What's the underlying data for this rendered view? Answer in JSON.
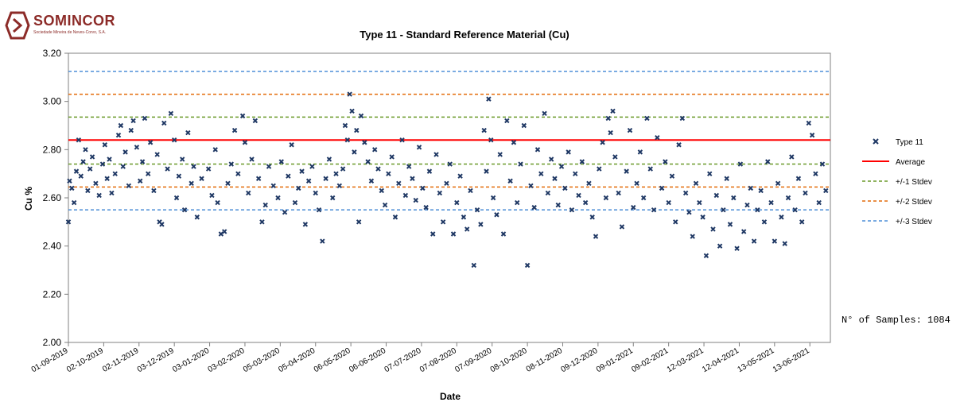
{
  "logo": {
    "name": "SOMINCOR",
    "subtitle": "Sociedade Mineira de Neves-Corvo, S.A.",
    "color": "#8c2b28"
  },
  "samples_note": "N° of Samples: 1084",
  "chart_data": {
    "type": "scatter",
    "title": "Type 11 - Standard Reference Material (Cu)",
    "xlabel": "Date",
    "ylabel": "Cu %",
    "ylim": [
      2.0,
      3.2
    ],
    "yticks": [
      "3.20",
      "3.00",
      "2.80",
      "2.60",
      "2.40",
      "2.20",
      "2.00"
    ],
    "xlim": [
      "2019-09-01",
      "2021-07-01"
    ],
    "xtick_labels": [
      "01-09-2019",
      "02-10-2019",
      "02-11-2019",
      "03-12-2019",
      "03-01-2020",
      "03-02-2020",
      "05-03-2020",
      "05-04-2020",
      "06-05-2020",
      "06-06-2020",
      "07-07-2020",
      "07-08-2020",
      "07-09-2020",
      "08-10-2020",
      "08-11-2020",
      "09-12-2020",
      "09-01-2021",
      "09-02-2021",
      "12-03-2021",
      "12-04-2021",
      "13-05-2021",
      "13-06-2021"
    ],
    "grid": false,
    "legend_position": "right",
    "legend": [
      {
        "label": "Type 11",
        "kind": "marker",
        "color": "#1f3864"
      },
      {
        "label": "Average",
        "kind": "solid",
        "color": "#ff0000"
      },
      {
        "label": "+/-1 Stdev",
        "kind": "dashed",
        "color": "#6b9a2a"
      },
      {
        "label": "+/-2 Stdev",
        "kind": "dashed",
        "color": "#e46c0a"
      },
      {
        "label": "+/-3 Stdev",
        "kind": "dashed",
        "color": "#4f8fd8"
      }
    ],
    "reference_lines": [
      {
        "name": "Average",
        "value": 2.84,
        "color": "#ff0000",
        "style": "solid"
      },
      {
        "name": "+1 Stdev",
        "value": 2.935,
        "color": "#6b9a2a",
        "style": "dashed"
      },
      {
        "name": "-1 Stdev",
        "value": 2.74,
        "color": "#6b9a2a",
        "style": "dashed"
      },
      {
        "name": "+2 Stdev",
        "value": 3.03,
        "color": "#e46c0a",
        "style": "dashed"
      },
      {
        "name": "-2 Stdev",
        "value": 2.645,
        "color": "#e46c0a",
        "style": "dashed"
      },
      {
        "name": "+3 Stdev",
        "value": 3.125,
        "color": "#4f8fd8",
        "style": "dashed"
      },
      {
        "name": "-3 Stdev",
        "value": 2.55,
        "color": "#4f8fd8",
        "style": "dashed"
      }
    ],
    "series": [
      {
        "name": "Type 11",
        "color": "#1f3864",
        "points": [
          [
            "2019-09-01",
            2.5
          ],
          [
            "2019-09-02",
            2.67
          ],
          [
            "2019-09-04",
            2.64
          ],
          [
            "2019-09-06",
            2.58
          ],
          [
            "2019-09-08",
            2.71
          ],
          [
            "2019-09-10",
            2.84
          ],
          [
            "2019-09-12",
            2.69
          ],
          [
            "2019-09-14",
            2.75
          ],
          [
            "2019-09-16",
            2.8
          ],
          [
            "2019-09-18",
            2.63
          ],
          [
            "2019-09-20",
            2.72
          ],
          [
            "2019-09-22",
            2.77
          ],
          [
            "2019-09-25",
            2.66
          ],
          [
            "2019-09-28",
            2.61
          ],
          [
            "2019-10-01",
            2.74
          ],
          [
            "2019-10-03",
            2.82
          ],
          [
            "2019-10-05",
            2.68
          ],
          [
            "2019-10-07",
            2.76
          ],
          [
            "2019-10-09",
            2.62
          ],
          [
            "2019-10-12",
            2.7
          ],
          [
            "2019-10-15",
            2.86
          ],
          [
            "2019-10-17",
            2.9
          ],
          [
            "2019-10-19",
            2.73
          ],
          [
            "2019-10-21",
            2.79
          ],
          [
            "2019-10-24",
            2.65
          ],
          [
            "2019-10-26",
            2.88
          ],
          [
            "2019-10-28",
            2.92
          ],
          [
            "2019-10-31",
            2.81
          ],
          [
            "2019-11-03",
            2.67
          ],
          [
            "2019-11-05",
            2.75
          ],
          [
            "2019-11-07",
            2.93
          ],
          [
            "2019-11-10",
            2.7
          ],
          [
            "2019-11-12",
            2.83
          ],
          [
            "2019-11-15",
            2.63
          ],
          [
            "2019-11-18",
            2.78
          ],
          [
            "2019-11-20",
            2.5
          ],
          [
            "2019-11-22",
            2.49
          ],
          [
            "2019-11-24",
            2.91
          ],
          [
            "2019-11-27",
            2.72
          ],
          [
            "2019-11-30",
            2.95
          ],
          [
            "2019-12-03",
            2.84
          ],
          [
            "2019-12-05",
            2.6
          ],
          [
            "2019-12-07",
            2.69
          ],
          [
            "2019-12-10",
            2.76
          ],
          [
            "2019-12-12",
            2.55
          ],
          [
            "2019-12-15",
            2.87
          ],
          [
            "2019-12-18",
            2.66
          ],
          [
            "2019-12-20",
            2.73
          ],
          [
            "2019-12-23",
            2.52
          ],
          [
            "2019-12-27",
            2.68
          ],
          [
            "2020-01-02",
            2.72
          ],
          [
            "2020-01-05",
            2.61
          ],
          [
            "2020-01-08",
            2.8
          ],
          [
            "2020-01-10",
            2.58
          ],
          [
            "2020-01-13",
            2.45
          ],
          [
            "2020-01-16",
            2.46
          ],
          [
            "2020-01-19",
            2.66
          ],
          [
            "2020-01-22",
            2.74
          ],
          [
            "2020-01-25",
            2.88
          ],
          [
            "2020-01-28",
            2.7
          ],
          [
            "2020-02-01",
            2.94
          ],
          [
            "2020-02-03",
            2.83
          ],
          [
            "2020-02-06",
            2.62
          ],
          [
            "2020-02-09",
            2.76
          ],
          [
            "2020-02-12",
            2.92
          ],
          [
            "2020-02-15",
            2.68
          ],
          [
            "2020-02-18",
            2.5
          ],
          [
            "2020-02-21",
            2.57
          ],
          [
            "2020-02-24",
            2.73
          ],
          [
            "2020-02-28",
            2.65
          ],
          [
            "2020-03-03",
            2.6
          ],
          [
            "2020-03-06",
            2.75
          ],
          [
            "2020-03-09",
            2.54
          ],
          [
            "2020-03-12",
            2.69
          ],
          [
            "2020-03-15",
            2.82
          ],
          [
            "2020-03-18",
            2.58
          ],
          [
            "2020-03-21",
            2.64
          ],
          [
            "2020-03-24",
            2.71
          ],
          [
            "2020-03-27",
            2.49
          ],
          [
            "2020-03-30",
            2.67
          ],
          [
            "2020-04-02",
            2.73
          ],
          [
            "2020-04-05",
            2.62
          ],
          [
            "2020-04-08",
            2.55
          ],
          [
            "2020-04-11",
            2.42
          ],
          [
            "2020-04-14",
            2.68
          ],
          [
            "2020-04-17",
            2.76
          ],
          [
            "2020-04-20",
            2.6
          ],
          [
            "2020-04-23",
            2.7
          ],
          [
            "2020-04-26",
            2.65
          ],
          [
            "2020-04-29",
            2.72
          ],
          [
            "2020-05-01",
            2.9
          ],
          [
            "2020-05-03",
            2.84
          ],
          [
            "2020-05-05",
            3.03
          ],
          [
            "2020-05-07",
            2.96
          ],
          [
            "2020-05-09",
            2.79
          ],
          [
            "2020-05-11",
            2.88
          ],
          [
            "2020-05-13",
            2.5
          ],
          [
            "2020-05-15",
            2.94
          ],
          [
            "2020-05-18",
            2.83
          ],
          [
            "2020-05-21",
            2.75
          ],
          [
            "2020-05-24",
            2.67
          ],
          [
            "2020-05-27",
            2.8
          ],
          [
            "2020-05-30",
            2.72
          ],
          [
            "2020-06-02",
            2.63
          ],
          [
            "2020-06-05",
            2.57
          ],
          [
            "2020-06-08",
            2.7
          ],
          [
            "2020-06-11",
            2.77
          ],
          [
            "2020-06-14",
            2.52
          ],
          [
            "2020-06-17",
            2.66
          ],
          [
            "2020-06-20",
            2.84
          ],
          [
            "2020-06-23",
            2.61
          ],
          [
            "2020-06-26",
            2.73
          ],
          [
            "2020-06-29",
            2.68
          ],
          [
            "2020-07-02",
            2.59
          ],
          [
            "2020-07-05",
            2.81
          ],
          [
            "2020-07-08",
            2.64
          ],
          [
            "2020-07-11",
            2.56
          ],
          [
            "2020-07-14",
            2.71
          ],
          [
            "2020-07-17",
            2.45
          ],
          [
            "2020-07-20",
            2.78
          ],
          [
            "2020-07-23",
            2.62
          ],
          [
            "2020-07-26",
            2.5
          ],
          [
            "2020-07-29",
            2.66
          ],
          [
            "2020-08-01",
            2.74
          ],
          [
            "2020-08-04",
            2.45
          ],
          [
            "2020-08-07",
            2.58
          ],
          [
            "2020-08-10",
            2.69
          ],
          [
            "2020-08-13",
            2.52
          ],
          [
            "2020-08-16",
            2.47
          ],
          [
            "2020-08-19",
            2.63
          ],
          [
            "2020-08-22",
            2.32
          ],
          [
            "2020-08-25",
            2.55
          ],
          [
            "2020-08-28",
            2.49
          ],
          [
            "2020-08-31",
            2.88
          ],
          [
            "2020-09-02",
            2.71
          ],
          [
            "2020-09-04",
            3.01
          ],
          [
            "2020-09-06",
            2.84
          ],
          [
            "2020-09-08",
            2.6
          ],
          [
            "2020-09-11",
            2.53
          ],
          [
            "2020-09-14",
            2.78
          ],
          [
            "2020-09-17",
            2.45
          ],
          [
            "2020-09-20",
            2.92
          ],
          [
            "2020-09-23",
            2.67
          ],
          [
            "2020-09-26",
            2.83
          ],
          [
            "2020-09-29",
            2.58
          ],
          [
            "2020-10-02",
            2.74
          ],
          [
            "2020-10-05",
            2.9
          ],
          [
            "2020-10-08",
            2.32
          ],
          [
            "2020-10-11",
            2.65
          ],
          [
            "2020-10-14",
            2.56
          ],
          [
            "2020-10-17",
            2.8
          ],
          [
            "2020-10-20",
            2.7
          ],
          [
            "2020-10-23",
            2.95
          ],
          [
            "2020-10-26",
            2.62
          ],
          [
            "2020-10-29",
            2.76
          ],
          [
            "2020-11-01",
            2.68
          ],
          [
            "2020-11-04",
            2.57
          ],
          [
            "2020-11-07",
            2.73
          ],
          [
            "2020-11-10",
            2.64
          ],
          [
            "2020-11-13",
            2.79
          ],
          [
            "2020-11-16",
            2.55
          ],
          [
            "2020-11-19",
            2.7
          ],
          [
            "2020-11-22",
            2.61
          ],
          [
            "2020-11-25",
            2.75
          ],
          [
            "2020-11-28",
            2.58
          ],
          [
            "2020-12-01",
            2.66
          ],
          [
            "2020-12-04",
            2.52
          ],
          [
            "2020-12-07",
            2.44
          ],
          [
            "2020-12-10",
            2.72
          ],
          [
            "2020-12-13",
            2.83
          ],
          [
            "2020-12-16",
            2.6
          ],
          [
            "2020-12-18",
            2.93
          ],
          [
            "2020-12-20",
            2.87
          ],
          [
            "2020-12-22",
            2.96
          ],
          [
            "2020-12-24",
            2.77
          ],
          [
            "2020-12-27",
            2.62
          ],
          [
            "2020-12-30",
            2.48
          ],
          [
            "2021-01-03",
            2.71
          ],
          [
            "2021-01-06",
            2.88
          ],
          [
            "2021-01-09",
            2.56
          ],
          [
            "2021-01-12",
            2.66
          ],
          [
            "2021-01-15",
            2.79
          ],
          [
            "2021-01-18",
            2.6
          ],
          [
            "2021-01-21",
            2.93
          ],
          [
            "2021-01-24",
            2.72
          ],
          [
            "2021-01-27",
            2.55
          ],
          [
            "2021-01-30",
            2.85
          ],
          [
            "2021-02-03",
            2.64
          ],
          [
            "2021-02-06",
            2.75
          ],
          [
            "2021-02-09",
            2.58
          ],
          [
            "2021-02-12",
            2.69
          ],
          [
            "2021-02-15",
            2.5
          ],
          [
            "2021-02-18",
            2.82
          ],
          [
            "2021-02-21",
            2.93
          ],
          [
            "2021-02-24",
            2.62
          ],
          [
            "2021-02-27",
            2.54
          ],
          [
            "2021-03-02",
            2.44
          ],
          [
            "2021-03-05",
            2.66
          ],
          [
            "2021-03-08",
            2.58
          ],
          [
            "2021-03-11",
            2.52
          ],
          [
            "2021-03-14",
            2.36
          ],
          [
            "2021-03-17",
            2.7
          ],
          [
            "2021-03-20",
            2.47
          ],
          [
            "2021-03-23",
            2.61
          ],
          [
            "2021-03-26",
            2.4
          ],
          [
            "2021-03-29",
            2.55
          ],
          [
            "2021-04-01",
            2.68
          ],
          [
            "2021-04-04",
            2.49
          ],
          [
            "2021-04-07",
            2.6
          ],
          [
            "2021-04-10",
            2.39
          ],
          [
            "2021-04-13",
            2.74
          ],
          [
            "2021-04-16",
            2.46
          ],
          [
            "2021-04-19",
            2.57
          ],
          [
            "2021-04-22",
            2.64
          ],
          [
            "2021-04-25",
            2.42
          ],
          [
            "2021-04-28",
            2.55
          ],
          [
            "2021-05-01",
            2.63
          ],
          [
            "2021-05-04",
            2.5
          ],
          [
            "2021-05-07",
            2.75
          ],
          [
            "2021-05-10",
            2.58
          ],
          [
            "2021-05-13",
            2.42
          ],
          [
            "2021-05-16",
            2.66
          ],
          [
            "2021-05-19",
            2.52
          ],
          [
            "2021-05-22",
            2.41
          ],
          [
            "2021-05-25",
            2.6
          ],
          [
            "2021-05-28",
            2.77
          ],
          [
            "2021-05-31",
            2.55
          ],
          [
            "2021-06-03",
            2.68
          ],
          [
            "2021-06-06",
            2.5
          ],
          [
            "2021-06-09",
            2.62
          ],
          [
            "2021-06-12",
            2.91
          ],
          [
            "2021-06-15",
            2.86
          ],
          [
            "2021-06-18",
            2.7
          ],
          [
            "2021-06-21",
            2.58
          ],
          [
            "2021-06-24",
            2.74
          ],
          [
            "2021-06-27",
            2.63
          ]
        ]
      }
    ]
  }
}
